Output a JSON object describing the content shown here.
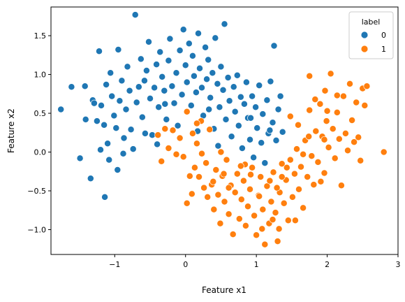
{
  "chart_data": {
    "type": "scatter",
    "xlabel": "Feature x1",
    "ylabel": "Feature x2",
    "xlim": [
      -1.9,
      3.0
    ],
    "ylim": [
      -1.32,
      1.87
    ],
    "xticks": [
      -1,
      0,
      1,
      2,
      3
    ],
    "yticks": [
      -1.0,
      -0.5,
      0.0,
      0.5,
      1.0,
      1.5
    ],
    "xtick_labels": [
      "−1",
      "0",
      "1",
      "2",
      "3"
    ],
    "ytick_labels": [
      "−1.0",
      "−0.5",
      "0.0",
      "0.5",
      "1.0",
      "1.5"
    ],
    "grid": false,
    "legend": {
      "title": "label",
      "position": "upper right"
    },
    "series": [
      {
        "name": "0",
        "color": "#1f77b4",
        "points": [
          [
            -1.76,
            0.55
          ],
          [
            -1.61,
            0.84
          ],
          [
            -1.49,
            -0.08
          ],
          [
            -1.42,
            0.85
          ],
          [
            -1.41,
            0.42
          ],
          [
            -1.34,
            -0.34
          ],
          [
            -1.31,
            0.67
          ],
          [
            -1.29,
            0.63
          ],
          [
            -1.25,
            0.4
          ],
          [
            -1.22,
            1.3
          ],
          [
            -1.19,
            0.6
          ],
          [
            -1.15,
            0.35
          ],
          [
            -1.14,
            -0.58
          ],
          [
            -1.12,
            0.87
          ],
          [
            -1.1,
            0.11
          ],
          [
            -1.08,
            -0.1
          ],
          [
            -1.06,
            1.02
          ],
          [
            -1.04,
            0.72
          ],
          [
            -1.01,
            0.47
          ],
          [
            -0.98,
            0.31
          ],
          [
            -0.96,
            -0.23
          ],
          [
            -0.95,
            1.32
          ],
          [
            -0.93,
            0.66
          ],
          [
            -0.9,
            0.92
          ],
          [
            -0.87,
            0.18
          ],
          [
            -0.84,
            0.55
          ],
          [
            -0.82,
            1.1
          ],
          [
            -0.79,
            0.79
          ],
          [
            -0.77,
            0.29
          ],
          [
            -0.74,
            0.04
          ],
          [
            -0.71,
            1.77
          ],
          [
            -0.69,
            0.64
          ],
          [
            -0.66,
            0.84
          ],
          [
            -0.63,
            1.2
          ],
          [
            -0.61,
            0.45
          ],
          [
            -0.58,
            0.92
          ],
          [
            -0.55,
            1.05
          ],
          [
            -0.52,
            1.42
          ],
          [
            -0.5,
            0.69
          ],
          [
            -0.47,
            0.22
          ],
          [
            -0.44,
            0.83
          ],
          [
            -0.41,
            1.13
          ],
          [
            -0.38,
            0.58
          ],
          [
            -0.36,
            1.29
          ],
          [
            -0.33,
            0.97
          ],
          [
            -0.3,
            0.79
          ],
          [
            -0.27,
            0.42
          ],
          [
            -0.24,
            1.18
          ],
          [
            -0.22,
            1.46
          ],
          [
            -0.19,
            0.85
          ],
          [
            -0.16,
            0.63
          ],
          [
            -0.13,
            1.02
          ],
          [
            -0.11,
            0.34
          ],
          [
            -0.08,
            1.31
          ],
          [
            -0.05,
            0.74
          ],
          [
            -0.03,
            1.58
          ],
          [
            0.0,
            1.12
          ],
          [
            0.02,
            0.9
          ],
          [
            0.05,
            1.4
          ],
          [
            0.08,
            0.6
          ],
          [
            0.1,
            1.24
          ],
          [
            0.12,
            0.98
          ],
          [
            0.15,
            0.77
          ],
          [
            0.18,
            1.53
          ],
          [
            0.2,
            1.08
          ],
          [
            0.23,
            0.83
          ],
          [
            0.25,
            0.47
          ],
          [
            0.28,
            1.35
          ],
          [
            0.3,
            0.94
          ],
          [
            0.32,
            1.19
          ],
          [
            0.35,
            0.7
          ],
          [
            0.38,
            1.02
          ],
          [
            0.4,
            0.3
          ],
          [
            0.42,
            1.47
          ],
          [
            0.45,
            0.88
          ],
          [
            0.48,
            0.58
          ],
          [
            0.5,
            1.1
          ],
          [
            0.53,
            0.8
          ],
          [
            0.55,
            1.65
          ],
          [
            0.57,
            0.42
          ],
          [
            0.6,
            0.96
          ],
          [
            0.62,
            0.66
          ],
          [
            0.65,
            0.2
          ],
          [
            0.68,
            0.84
          ],
          [
            0.7,
            0.52
          ],
          [
            0.73,
            0.99
          ],
          [
            0.75,
            0.34
          ],
          [
            0.78,
            0.71
          ],
          [
            0.8,
            0.05
          ],
          [
            0.83,
            0.62
          ],
          [
            0.86,
            0.9
          ],
          [
            0.88,
            0.44
          ],
          [
            0.91,
            0.16
          ],
          [
            0.94,
            0.72
          ],
          [
            0.96,
            -0.07
          ],
          [
            0.99,
            0.58
          ],
          [
            1.01,
            0.31
          ],
          [
            1.04,
            0.86
          ],
          [
            1.07,
            0.12
          ],
          [
            1.09,
            0.49
          ],
          [
            1.12,
            -0.14
          ],
          [
            1.15,
            0.67
          ],
          [
            1.17,
            0.24
          ],
          [
            1.2,
            0.91
          ],
          [
            1.23,
            0.38
          ],
          [
            1.25,
            1.37
          ],
          [
            1.28,
            0.15
          ],
          [
            1.31,
            0.55
          ],
          [
            1.34,
            0.72
          ],
          [
            1.37,
            0.26
          ],
          [
            -1.2,
            0.03
          ],
          [
            -0.88,
            -0.02
          ],
          [
            -0.57,
            0.24
          ],
          [
            -0.4,
            0.1
          ],
          [
            0.17,
            0.27
          ],
          [
            0.46,
            0.08
          ],
          [
            0.92,
            0.44
          ],
          [
            1.19,
            0.28
          ],
          [
            -0.29,
            0.62
          ],
          [
            0.33,
            0.55
          ]
        ]
      },
      {
        "name": "1",
        "color": "#ff7f0e",
        "points": [
          [
            -0.39,
            0.22
          ],
          [
            -0.34,
            -0.12
          ],
          [
            -0.29,
            0.3
          ],
          [
            -0.24,
            0.05
          ],
          [
            -0.18,
            0.28
          ],
          [
            -0.13,
            -0.03
          ],
          [
            -0.08,
            0.18
          ],
          [
            -0.03,
            -0.06
          ],
          [
            0.02,
            0.52
          ],
          [
            0.06,
            -0.31
          ],
          [
            0.1,
            0.24
          ],
          [
            0.13,
            -0.2
          ],
          [
            0.16,
            0.11
          ],
          [
            0.19,
            -0.32
          ],
          [
            0.22,
            0.4
          ],
          [
            0.26,
            -0.46
          ],
          [
            0.29,
            -0.14
          ],
          [
            0.31,
            -0.58
          ],
          [
            0.34,
            0.29
          ],
          [
            0.37,
            -0.42
          ],
          [
            0.4,
            -0.74
          ],
          [
            0.43,
            -0.23
          ],
          [
            0.46,
            -0.55
          ],
          [
            0.49,
            -0.92
          ],
          [
            0.52,
            -0.31
          ],
          [
            0.55,
            -0.64
          ],
          [
            0.58,
            -0.1
          ],
          [
            0.61,
            -0.8
          ],
          [
            0.64,
            -0.43
          ],
          [
            0.67,
            -1.06
          ],
          [
            0.7,
            -0.52
          ],
          [
            0.73,
            -0.28
          ],
          [
            0.76,
            -0.86
          ],
          [
            0.79,
            -0.61
          ],
          [
            0.82,
            -0.37
          ],
          [
            0.85,
            -0.95
          ],
          [
            0.88,
            -0.7
          ],
          [
            0.91,
            -0.48
          ],
          [
            0.94,
            -0.2
          ],
          [
            0.97,
            -0.82
          ],
          [
            1.0,
            -1.07
          ],
          [
            1.03,
            -0.56
          ],
          [
            1.06,
            -0.32
          ],
          [
            1.09,
            -0.74
          ],
          [
            1.12,
            -1.19
          ],
          [
            1.15,
            -0.44
          ],
          [
            1.18,
            -0.92
          ],
          [
            1.21,
            -0.64
          ],
          [
            1.24,
            -0.26
          ],
          [
            1.27,
            -0.78
          ],
          [
            1.3,
            -1.15
          ],
          [
            1.33,
            -0.52
          ],
          [
            1.36,
            -0.15
          ],
          [
            1.39,
            -0.66
          ],
          [
            1.42,
            -0.36
          ],
          [
            1.45,
            -0.88
          ],
          [
            1.48,
            -0.1
          ],
          [
            1.51,
            -0.58
          ],
          [
            1.54,
            -0.28
          ],
          [
            1.57,
            0.04
          ],
          [
            1.6,
            -0.48
          ],
          [
            1.63,
            -0.19
          ],
          [
            1.66,
            -0.72
          ],
          [
            1.69,
            0.15
          ],
          [
            1.72,
            -0.32
          ],
          [
            1.75,
            0.54
          ],
          [
            1.78,
            -0.05
          ],
          [
            1.81,
            -0.42
          ],
          [
            1.84,
            0.27
          ],
          [
            1.87,
            -0.13
          ],
          [
            1.9,
            0.62
          ],
          [
            1.93,
            0.2
          ],
          [
            1.96,
            -0.27
          ],
          [
            1.99,
            0.4
          ],
          [
            2.02,
            0.06
          ],
          [
            2.05,
            1.01
          ],
          [
            2.08,
            0.3
          ],
          [
            2.11,
            -0.08
          ],
          [
            2.14,
            0.51
          ],
          [
            2.17,
            0.17
          ],
          [
            2.2,
            -0.43
          ],
          [
            2.23,
            0.72
          ],
          [
            2.26,
            0.24
          ],
          [
            2.29,
            0.02
          ],
          [
            2.32,
            0.88
          ],
          [
            2.35,
            0.41
          ],
          [
            2.38,
            0.13
          ],
          [
            2.41,
            0.64
          ],
          [
            2.44,
            0.19
          ],
          [
            2.47,
            -0.11
          ],
          [
            2.5,
            0.82
          ],
          [
            2.53,
            0.6
          ],
          [
            2.56,
            0.85
          ],
          [
            2.8,
            0.0
          ],
          [
            1.75,
            0.98
          ],
          [
            1.83,
            0.68
          ],
          [
            1.97,
            0.79
          ],
          [
            2.14,
            0.73
          ],
          [
            1.08,
            -0.99
          ],
          [
            0.23,
            -0.02
          ],
          [
            0.54,
            -0.28
          ],
          [
            0.84,
            -0.16
          ],
          [
            1.32,
            -0.99
          ],
          [
            1.55,
            -0.88
          ],
          [
            1.66,
            -0.03
          ],
          [
            0.02,
            -0.66
          ],
          [
            0.09,
            -0.54
          ],
          [
            0.16,
            0.37
          ],
          [
            0.39,
            -0.38
          ],
          [
            0.61,
            -0.46
          ],
          [
            1.48,
            0.46
          ],
          [
            1.36,
            -0.32
          ],
          [
            1.91,
            -0.38
          ],
          [
            1.74,
            0.2
          ],
          [
            2.0,
            0.53
          ],
          [
            1.19,
            -0.37
          ],
          [
            1.29,
            -0.46
          ],
          [
            1.43,
            -0.2
          ],
          [
            1.59,
            0.35
          ],
          [
            1.96,
            0.16
          ],
          [
            0.78,
            -0.18
          ],
          [
            0.92,
            -0.29
          ],
          [
            1.04,
            -0.57
          ],
          [
            0.5,
            0.0
          ],
          [
            1.23,
            -0.87
          ]
        ]
      }
    ]
  }
}
